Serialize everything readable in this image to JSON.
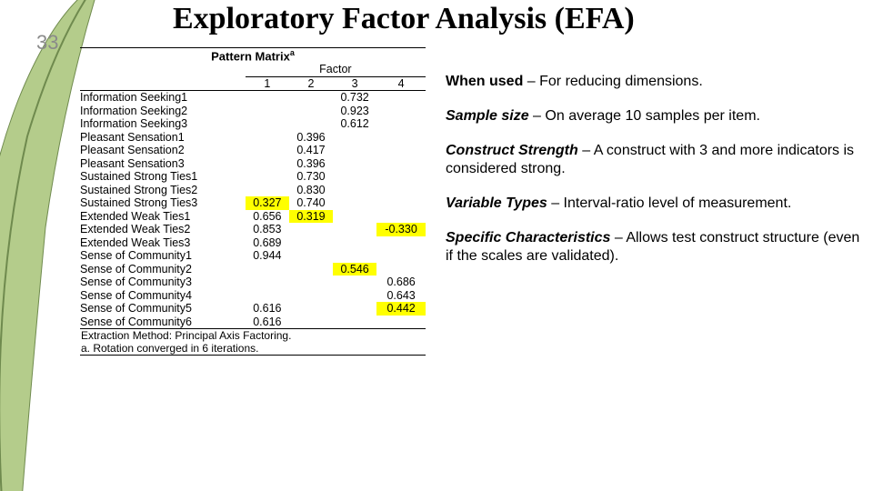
{
  "page_number": "33",
  "title": "Exploratory Factor Analysis (EFA)",
  "leaf_svg": {
    "fill": "#b4cc8b",
    "stroke": "#6f8a4e"
  },
  "table": {
    "title": "Pattern Matrix",
    "title_sup": "a",
    "factor_header": "Factor",
    "col_headers": [
      "1",
      "2",
      "3",
      "4"
    ],
    "rows": [
      {
        "label": "Information Seeking1",
        "vals": [
          "",
          "",
          "0.732",
          ""
        ],
        "hl": []
      },
      {
        "label": "Information Seeking2",
        "vals": [
          "",
          "",
          "0.923",
          ""
        ],
        "hl": []
      },
      {
        "label": "Information Seeking3",
        "vals": [
          "",
          "",
          "0.612",
          ""
        ],
        "hl": []
      },
      {
        "label": "Pleasant Sensation1",
        "vals": [
          "",
          "0.396",
          "",
          ""
        ],
        "hl": []
      },
      {
        "label": "Pleasant Sensation2",
        "vals": [
          "",
          "0.417",
          "",
          ""
        ],
        "hl": []
      },
      {
        "label": "Pleasant Sensation3",
        "vals": [
          "",
          "0.396",
          "",
          ""
        ],
        "hl": []
      },
      {
        "label": "Sustained Strong Ties1",
        "vals": [
          "",
          "0.730",
          "",
          ""
        ],
        "hl": []
      },
      {
        "label": "Sustained Strong Ties2",
        "vals": [
          "",
          "0.830",
          "",
          ""
        ],
        "hl": []
      },
      {
        "label": "Sustained Strong Ties3",
        "vals": [
          "0.327",
          "0.740",
          "",
          ""
        ],
        "hl": [
          0
        ]
      },
      {
        "label": "Extended Weak Ties1",
        "vals": [
          "0.656",
          "0.319",
          "",
          ""
        ],
        "hl": [
          1
        ]
      },
      {
        "label": "Extended Weak Ties2",
        "vals": [
          "0.853",
          "",
          "",
          "-0.330"
        ],
        "hl": [
          3
        ]
      },
      {
        "label": "Extended Weak Ties3",
        "vals": [
          "0.689",
          "",
          "",
          ""
        ],
        "hl": []
      },
      {
        "label": "Sense of Community1",
        "vals": [
          "0.944",
          "",
          "",
          ""
        ],
        "hl": []
      },
      {
        "label": "Sense of Community2",
        "vals": [
          "",
          "",
          "0.546",
          ""
        ],
        "hl": [
          2
        ]
      },
      {
        "label": "Sense of Community3",
        "vals": [
          "",
          "",
          "",
          "0.686"
        ],
        "hl": []
      },
      {
        "label": "Sense of Community4",
        "vals": [
          "",
          "",
          "",
          "0.643"
        ],
        "hl": []
      },
      {
        "label": "Sense of Community5",
        "vals": [
          "0.616",
          "",
          "",
          "0.442"
        ],
        "hl": [
          3
        ]
      },
      {
        "label": "Sense of Community6",
        "vals": [
          "0.616",
          "",
          "",
          ""
        ],
        "hl": []
      }
    ],
    "footnote1": "Extraction Method: Principal Axis Factoring.",
    "footnote2": "a. Rotation converged in 6 iterations."
  },
  "notes": [
    {
      "label": "When used",
      "italic": false,
      "text": " – For reducing dimensions."
    },
    {
      "label": "Sample size",
      "italic": true,
      "text": " – On average 10 samples per item."
    },
    {
      "label": "Construct Strength",
      "italic": true,
      "text": " – A construct with 3 and more indicators is considered strong."
    },
    {
      "label": "Variable Types",
      "italic": true,
      "text": " – Interval-ratio level of measurement."
    },
    {
      "label": "Specific Characteristics",
      "italic": true,
      "text": " – Allows test construct structure (even if the scales are validated)."
    }
  ]
}
